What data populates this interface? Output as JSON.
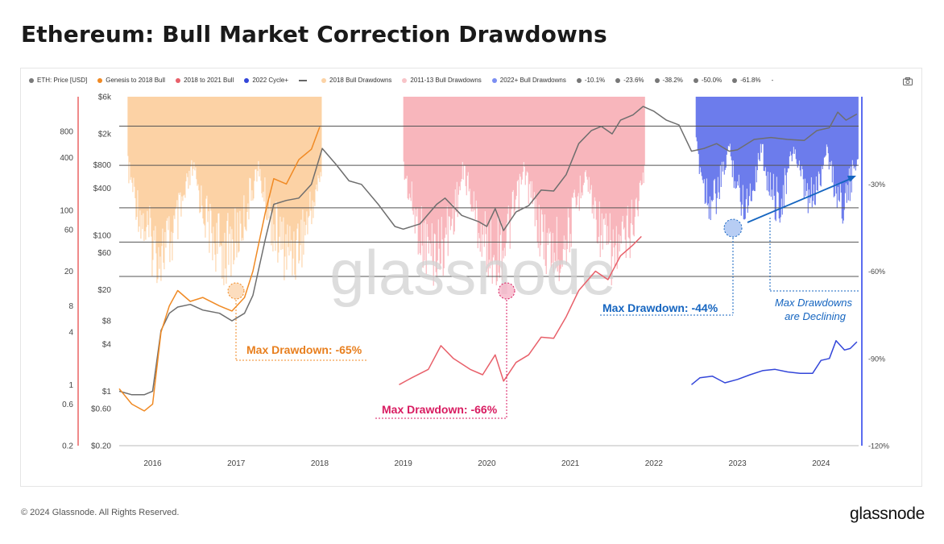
{
  "title": "Ethereum: Bull Market Correction Drawdowns",
  "footer": "© 2024 Glassnode. All Rights Reserved.",
  "brand": "glassnode",
  "watermark": "glassnode",
  "legend": [
    {
      "label": "ETH: Price [USD]",
      "color": "#7a7a7a",
      "kind": "dot"
    },
    {
      "label": "Genesis to 2018 Bull",
      "color": "#f08a24",
      "kind": "dot"
    },
    {
      "label": "2018 to 2021 Bull",
      "color": "#e8606a",
      "kind": "dot"
    },
    {
      "label": "2022 Cycle+",
      "color": "#3346d9",
      "kind": "dot"
    },
    {
      "label": "",
      "color": "#666666",
      "kind": "line"
    },
    {
      "label": "2018 Bull Drawdowns",
      "color": "#fcd3a6",
      "kind": "dot"
    },
    {
      "label": "2011-13 Bull Drawdowns",
      "color": "#f8c4c8",
      "kind": "dot"
    },
    {
      "label": "2022+ Bull Drawdowns",
      "color": "#7b8ef2",
      "kind": "dot"
    },
    {
      "label": "-10.1%",
      "color": "#777777",
      "kind": "dot"
    },
    {
      "label": "-23.6%",
      "color": "#777777",
      "kind": "dot"
    },
    {
      "label": "-38.2%",
      "color": "#777777",
      "kind": "dot"
    },
    {
      "label": "-50.0%",
      "color": "#777777",
      "kind": "dot"
    },
    {
      "label": "-61.8%",
      "color": "#777777",
      "kind": "dot"
    },
    {
      "label": "-",
      "color": "#777777",
      "kind": "none"
    }
  ],
  "annotations": {
    "orange": "Max Drawdown: -65%",
    "pink": "Max Drawdown: -66%",
    "blue": "Max Drawdown: -44%",
    "declining_line1": "Max Drawdowns",
    "declining_line2": "are Declining"
  },
  "colors": {
    "eth": "#6e6e6e",
    "orange": "#f08a24",
    "orange_fill": "#fcc995",
    "red": "#e8606a",
    "red_fill": "#f7a5ab",
    "blue": "#3346d9",
    "blue_fill": "#4a5ee8",
    "orange_text": "#e87f1e",
    "pink_text": "#d81b60",
    "blue_text": "#1565c0",
    "ref_line": "#555555"
  },
  "chart_data": {
    "type": "line",
    "x_ticks": [
      "2016",
      "2017",
      "2018",
      "2019",
      "2020",
      "2021",
      "2022",
      "2023",
      "2024"
    ],
    "x_tick_years": [
      2016,
      2017,
      2018,
      2019,
      2020,
      2021,
      2022,
      2023,
      2024
    ],
    "xlim": [
      2015.6,
      2024.45
    ],
    "y_price_ticks": [
      "$6k",
      "$2k",
      "$800",
      "$400",
      "$100",
      "$60",
      "$20",
      "$8",
      "$4",
      "$1",
      "$0.60",
      "$0.20"
    ],
    "y_price_values": [
      6000,
      2000,
      800,
      400,
      100,
      60,
      20,
      8,
      4,
      1,
      0.6,
      0.2
    ],
    "price_ylim": [
      0.2,
      6000
    ],
    "y_norm_ticks": [
      "800",
      "400",
      "100",
      "60",
      "20",
      "8",
      "4",
      "1",
      "0.6",
      "0.2"
    ],
    "y_norm_values": [
      800,
      400,
      100,
      60,
      20,
      8,
      4,
      1,
      0.6,
      0.2
    ],
    "norm_ylim": [
      0.2,
      2000
    ],
    "y_right_ticks": [
      "-30%",
      "-60%",
      "-90%",
      "-120%"
    ],
    "y_right_values": [
      -30,
      -60,
      -90,
      -120
    ],
    "right_ylim": [
      -120,
      0
    ],
    "reference_levels": [
      {
        "label": "-10.1%",
        "value": -10.1
      },
      {
        "label": "-23.6%",
        "value": -23.6
      },
      {
        "label": "-38.2%",
        "value": -38.2
      },
      {
        "label": "-50.0%",
        "value": -50.0
      },
      {
        "label": "-61.8%",
        "value": -61.8
      }
    ],
    "series": [
      {
        "name": "ETH: Price [USD]",
        "axis": "price",
        "x": [
          2015.6,
          2015.75,
          2015.9,
          2016.0,
          2016.1,
          2016.2,
          2016.3,
          2016.45,
          2016.6,
          2016.8,
          2016.95,
          2017.1,
          2017.2,
          2017.35,
          2017.45,
          2017.6,
          2017.75,
          2017.9,
          2018.03,
          2018.2,
          2018.35,
          2018.5,
          2018.7,
          2018.9,
          2019.0,
          2019.2,
          2019.4,
          2019.5,
          2019.7,
          2019.9,
          2020.0,
          2020.1,
          2020.2,
          2020.35,
          2020.5,
          2020.65,
          2020.8,
          2020.95,
          2021.1,
          2021.25,
          2021.37,
          2021.5,
          2021.6,
          2021.75,
          2021.87,
          2022.0,
          2022.15,
          2022.3,
          2022.45,
          2022.6,
          2022.75,
          2022.9,
          2023.0,
          2023.2,
          2023.4,
          2023.6,
          2023.8,
          2023.95,
          2024.1,
          2024.2,
          2024.3,
          2024.43
        ],
        "values": [
          1.0,
          0.9,
          0.9,
          1.0,
          6,
          10,
          12,
          13,
          11,
          10,
          8,
          10,
          17,
          90,
          250,
          280,
          300,
          450,
          1300,
          800,
          500,
          450,
          250,
          130,
          120,
          140,
          250,
          300,
          180,
          150,
          130,
          220,
          115,
          200,
          240,
          380,
          370,
          600,
          1500,
          2200,
          2500,
          2000,
          3000,
          3500,
          4500,
          3900,
          3000,
          2600,
          1200,
          1300,
          1500,
          1200,
          1250,
          1700,
          1800,
          1700,
          1650,
          2200,
          2400,
          3800,
          3000,
          3600
        ]
      },
      {
        "name": "Genesis to 2018 Bull",
        "axis": "norm",
        "x": [
          2015.6,
          2015.75,
          2015.9,
          2016.0,
          2016.1,
          2016.2,
          2016.3,
          2016.45,
          2016.6,
          2016.8,
          2016.95,
          2017.1,
          2017.2,
          2017.35,
          2017.45,
          2017.6,
          2017.75,
          2017.9,
          2018.0
        ],
        "values": [
          0.9,
          0.6,
          0.5,
          0.6,
          4,
          8,
          12,
          9,
          10,
          8,
          7,
          10,
          20,
          95,
          230,
          200,
          380,
          500,
          900
        ]
      },
      {
        "name": "2018 to 2021 Bull",
        "axis": "norm",
        "x": [
          2018.95,
          2019.1,
          2019.3,
          2019.45,
          2019.6,
          2019.8,
          2019.95,
          2020.1,
          2020.2,
          2020.35,
          2020.5,
          2020.65,
          2020.8,
          2020.95,
          2021.1,
          2021.3,
          2021.45,
          2021.6,
          2021.75,
          2021.85
        ],
        "values": [
          1.0,
          1.2,
          1.5,
          2.8,
          2.0,
          1.5,
          1.3,
          2.2,
          1.1,
          1.8,
          2.2,
          3.5,
          3.4,
          6.0,
          12,
          20,
          16,
          30,
          40,
          50
        ]
      },
      {
        "name": "2022 Cycle+",
        "axis": "norm",
        "x": [
          2022.45,
          2022.55,
          2022.7,
          2022.85,
          2023.0,
          2023.15,
          2023.3,
          2023.45,
          2023.6,
          2023.75,
          2023.9,
          2024.0,
          2024.1,
          2024.18,
          2024.28,
          2024.35,
          2024.43
        ],
        "values": [
          1.0,
          1.2,
          1.25,
          1.05,
          1.15,
          1.3,
          1.45,
          1.5,
          1.4,
          1.35,
          1.35,
          1.9,
          2.0,
          3.2,
          2.5,
          2.6,
          3.1
        ]
      }
    ],
    "drawdown_areas": [
      {
        "name": "2018 Bull Drawdowns",
        "x_start": 2015.7,
        "x_end": 2018.03,
        "max_drawdown": -65
      },
      {
        "name": "2011-13 Bull Drawdowns",
        "x_start": 2019.0,
        "x_end": 2021.9,
        "max_drawdown": -66
      },
      {
        "name": "2022+ Bull Drawdowns",
        "x_start": 2022.5,
        "x_end": 2024.45,
        "max_drawdown": -44
      }
    ]
  }
}
